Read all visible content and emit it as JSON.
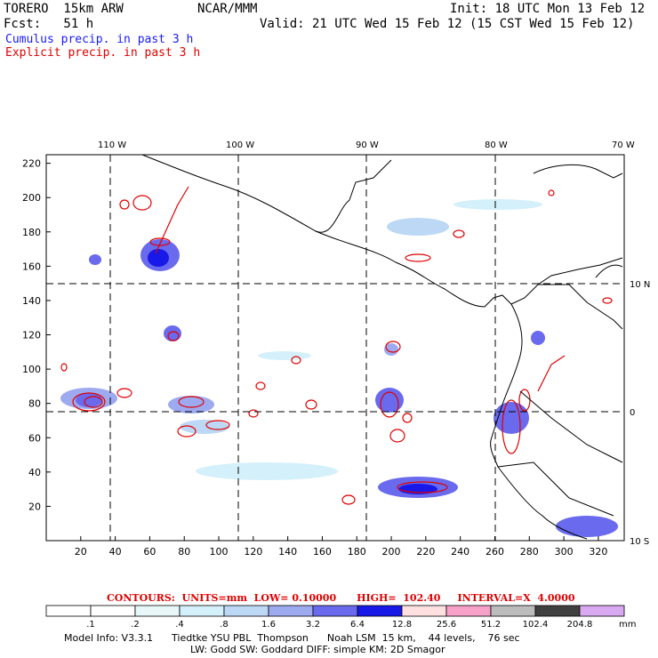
{
  "header": {
    "model": "TORERO  15km ARW",
    "org": "NCAR/MMM",
    "init": "Init: 18 UTC Mon 13 Feb 12",
    "fcst": "Fcst:   51 h",
    "valid": "Valid: 21 UTC Wed 15 Feb 12 (15 CST Wed 15 Feb 12)",
    "field1": "Cumulus precip. in past 3 h",
    "field2": "Explicit precip. in past 3 h"
  },
  "map": {
    "lon_labels": [
      "110 W",
      "100 W",
      "90 W",
      "80 W",
      "70 W"
    ],
    "lat_labels": [
      "10 N",
      "0",
      "10 S"
    ],
    "x_ticks": [
      "20",
      "40",
      "60",
      "80",
      "100",
      "120",
      "140",
      "160",
      "180",
      "200",
      "220",
      "240",
      "260",
      "280",
      "300",
      "320"
    ],
    "y_ticks": [
      "20",
      "40",
      "60",
      "80",
      "100",
      "120",
      "140",
      "160",
      "180",
      "200",
      "220"
    ],
    "x_range": [
      0,
      335
    ],
    "y_range": [
      0,
      225
    ]
  },
  "contours_text": "CONTOURS:  UNITS=mm  LOW= 0.10000      HIGH=  102.40     INTERVAL=X  4.0000",
  "colorbar": {
    "labels": [
      ".1",
      ".2",
      ".4",
      ".8",
      "1.6",
      "3.2",
      "6.4",
      "12.8",
      "25.6",
      "51.2",
      "102.4",
      "204.8"
    ],
    "units": "mm",
    "colors": [
      "#ffffff",
      "#ffffff",
      "#e8f8f8",
      "#d4f0fa",
      "#bcd8f5",
      "#9eaaf0",
      "#6a6aee",
      "#1818e8",
      "#ffe0e0",
      "#f7a0c8",
      "#bcbcbc",
      "#404040",
      "#d8a8f0"
    ]
  },
  "footer": {
    "line1": "Model Info: V3.3.1      Tiedtke YSU PBL  Thompson      Noah LSM  15 km,    44 levels,    76 sec",
    "line2": "LW: Godd SW: Goddard DIFF: simple KM: 2D Smagor"
  }
}
